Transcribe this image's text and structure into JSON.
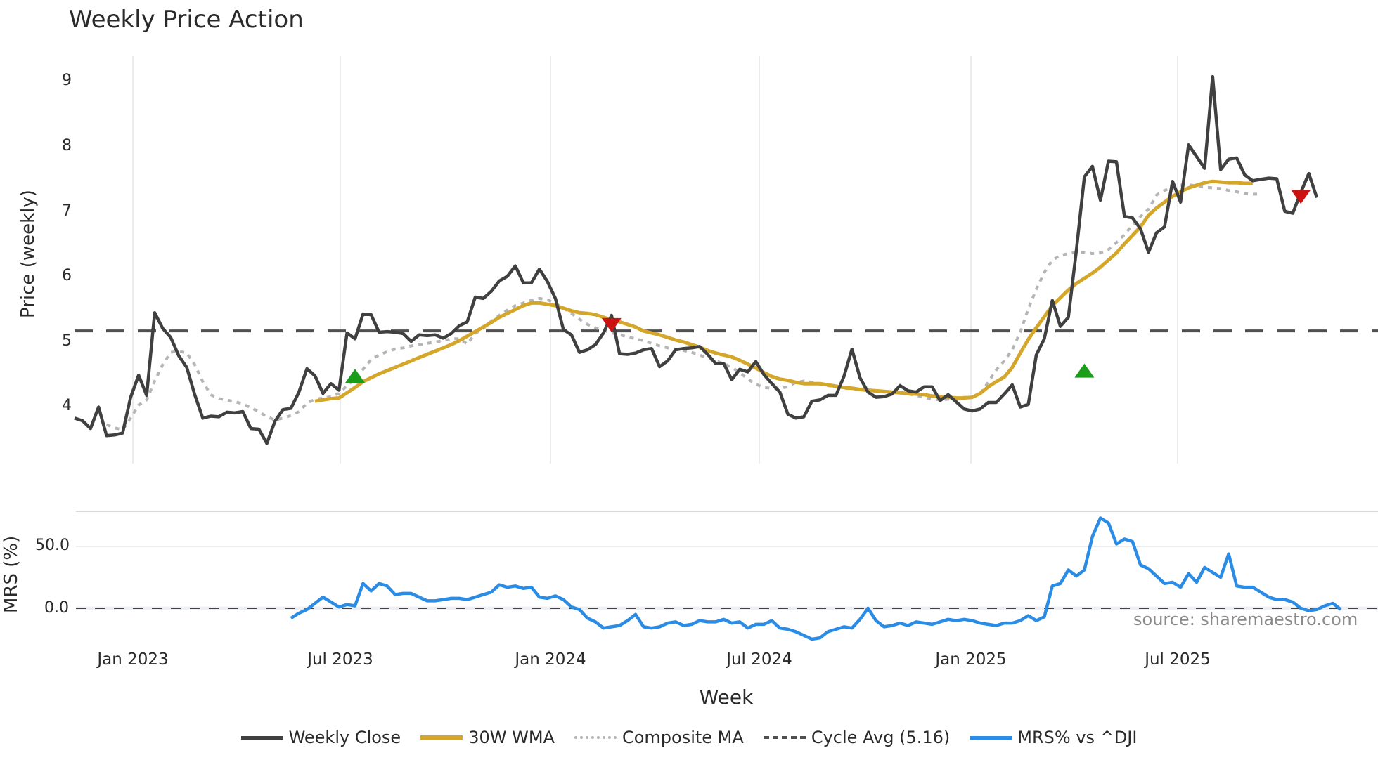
{
  "title": "Weekly Price Action",
  "price_axis": {
    "label": "Price (weekly)",
    "ticks": [
      "9",
      "8",
      "7",
      "6",
      "5",
      "4"
    ]
  },
  "mrs_axis": {
    "label": "MRS (%)",
    "ticks": [
      "50.0",
      "0.0"
    ]
  },
  "x_axis": {
    "label": "Week",
    "ticks": [
      "Jan 2023",
      "Jul 2023",
      "Jan 2024",
      "Jul 2024",
      "Jan 2025",
      "Jul 2025"
    ]
  },
  "source": "source: sharemaestro.com",
  "colors": {
    "close": "#404040",
    "wma": "#d4a62a",
    "composite": "#b5b5b5",
    "cycle": "#505050",
    "mrs": "#2b8ce6",
    "buy": "#1a9e1a",
    "sell": "#cc1111",
    "grid": "#ececf0"
  },
  "legend": [
    {
      "key": "close",
      "label": "Weekly Close"
    },
    {
      "key": "wma",
      "label": "30W WMA"
    },
    {
      "key": "composite",
      "label": "Composite MA"
    },
    {
      "key": "cycle",
      "label": "Cycle Avg (5.16)"
    },
    {
      "key": "mrs",
      "label": "MRS% vs ^DJI"
    }
  ],
  "chart_data": [
    {
      "type": "line",
      "title": "Weekly Price Action",
      "xlabel": "Week",
      "ylabel": "Price (weekly)",
      "ylim": [
        3.2,
        9.4
      ],
      "x_start": "2022-11-14",
      "x_step": "1 week",
      "x_ticks": [
        "Jan 2023",
        "Jul 2023",
        "Jan 2024",
        "Jul 2024",
        "Jan 2025",
        "Jul 2025"
      ],
      "grid": true,
      "legend_position": "bottom",
      "series": [
        {
          "name": "Weekly Close",
          "values": [
            3.82,
            3.78,
            3.66,
            3.99,
            3.55,
            3.56,
            3.59,
            4.14,
            4.48,
            4.17,
            5.44,
            5.2,
            5.06,
            4.78,
            4.6,
            4.18,
            3.82,
            3.85,
            3.84,
            3.91,
            3.9,
            3.92,
            3.66,
            3.65,
            3.43,
            3.77,
            3.95,
            3.97,
            4.22,
            4.58,
            4.47,
            4.2,
            4.35,
            4.25,
            5.13,
            5.04,
            5.42,
            5.41,
            5.14,
            5.15,
            5.14,
            5.12,
            5.0,
            5.1,
            5.09,
            5.1,
            5.05,
            5.12,
            5.24,
            5.3,
            5.68,
            5.66,
            5.77,
            5.93,
            6.0,
            6.16,
            5.9,
            5.9,
            6.11,
            5.92,
            5.66,
            5.18,
            5.1,
            4.83,
            4.87,
            4.95,
            5.13,
            5.4,
            4.81,
            4.8,
            4.82,
            4.87,
            4.89,
            4.61,
            4.7,
            4.87,
            4.89,
            4.9,
            4.92,
            4.8,
            4.66,
            4.66,
            4.41,
            4.57,
            4.53,
            4.69,
            4.49,
            4.35,
            4.22,
            3.88,
            3.82,
            3.84,
            4.08,
            4.1,
            4.17,
            4.17,
            4.46,
            4.88,
            4.44,
            4.22,
            4.14,
            4.15,
            4.19,
            4.32,
            4.24,
            4.22,
            4.3,
            4.3,
            4.09,
            4.18,
            4.07,
            3.96,
            3.93,
            3.96,
            4.06,
            4.06,
            4.19,
            4.33,
            3.99,
            4.03,
            4.79,
            5.04,
            5.63,
            5.23,
            5.37,
            6.4,
            7.53,
            7.69,
            7.17,
            7.77,
            7.76,
            6.92,
            6.9,
            6.73,
            6.37,
            6.67,
            6.76,
            7.46,
            7.14,
            8.02,
            7.84,
            7.66,
            9.07,
            7.64,
            7.8,
            7.82,
            7.56,
            7.47,
            7.49,
            7.51,
            7.5,
            7.0,
            6.97,
            7.29,
            7.58,
            7.21
          ]
        },
        {
          "name": "30W WMA",
          "start_index": 30,
          "values": [
            4.08,
            4.1,
            4.12,
            4.13,
            4.21,
            4.29,
            4.38,
            4.44,
            4.5,
            4.55,
            4.6,
            4.65,
            4.7,
            4.75,
            4.8,
            4.85,
            4.9,
            4.95,
            5.01,
            5.08,
            5.15,
            5.22,
            5.29,
            5.37,
            5.43,
            5.49,
            5.55,
            5.59,
            5.59,
            5.57,
            5.55,
            5.51,
            5.47,
            5.44,
            5.43,
            5.41,
            5.37,
            5.33,
            5.3,
            5.26,
            5.22,
            5.16,
            5.13,
            5.1,
            5.06,
            5.02,
            4.99,
            4.95,
            4.91,
            4.86,
            4.82,
            4.79,
            4.76,
            4.71,
            4.65,
            4.59,
            4.52,
            4.46,
            4.42,
            4.4,
            4.37,
            4.35,
            4.35,
            4.35,
            4.33,
            4.31,
            4.29,
            4.28,
            4.26,
            4.25,
            4.24,
            4.23,
            4.22,
            4.21,
            4.2,
            4.19,
            4.18,
            4.16,
            4.15,
            4.14,
            4.13,
            4.13,
            4.14,
            4.2,
            4.3,
            4.38,
            4.45,
            4.6,
            4.82,
            5.03,
            5.21,
            5.38,
            5.55,
            5.67,
            5.79,
            5.89,
            5.97,
            6.05,
            6.14,
            6.25,
            6.36,
            6.5,
            6.63,
            6.76,
            6.94,
            7.05,
            7.14,
            7.23,
            7.3,
            7.36,
            7.4,
            7.44,
            7.46,
            7.45,
            7.44,
            7.44,
            7.43,
            7.43
          ]
        },
        {
          "name": "Composite MA",
          "start_index": 4,
          "values": [
            3.72,
            3.67,
            3.64,
            3.82,
            4.02,
            4.1,
            4.39,
            4.64,
            4.83,
            4.85,
            4.82,
            4.64,
            4.38,
            4.18,
            4.12,
            4.1,
            4.07,
            4.04,
            3.98,
            3.92,
            3.84,
            3.79,
            3.82,
            3.86,
            3.92,
            4.05,
            4.11,
            4.13,
            4.15,
            4.2,
            4.32,
            4.42,
            4.57,
            4.72,
            4.79,
            4.84,
            4.88,
            4.9,
            4.93,
            4.95,
            4.97,
            4.99,
            5.01,
            5.04,
            5.04,
            4.96,
            5.12,
            5.2,
            5.31,
            5.4,
            5.48,
            5.55,
            5.59,
            5.63,
            5.66,
            5.64,
            5.58,
            5.51,
            5.43,
            5.34,
            5.26,
            5.21,
            5.17,
            5.13,
            5.1,
            5.07,
            5.04,
            5.01,
            4.97,
            4.93,
            4.9,
            4.88,
            4.86,
            4.83,
            4.79,
            4.74,
            4.7,
            4.66,
            4.6,
            4.52,
            4.42,
            4.34,
            4.29,
            4.28,
            4.28,
            4.3,
            4.37,
            4.39,
            4.37,
            4.34,
            4.32,
            4.3,
            4.28,
            4.27,
            4.26,
            4.25,
            4.23,
            4.22,
            4.22,
            4.21,
            4.19,
            4.17,
            4.14,
            4.11,
            4.1,
            4.11,
            4.12,
            4.14,
            4.14,
            4.2,
            4.37,
            4.56,
            4.7,
            4.87,
            5.14,
            5.5,
            5.8,
            6.06,
            6.25,
            6.32,
            6.35,
            6.37,
            6.37,
            6.35,
            6.36,
            6.41,
            6.52,
            6.64,
            6.79,
            6.92,
            7.03,
            7.25,
            7.32,
            7.37,
            7.4,
            7.41,
            7.39,
            7.37,
            7.36,
            7.35,
            7.32,
            7.3,
            7.27,
            7.26,
            7.27
          ]
        },
        {
          "name": "Cycle Avg (5.16)",
          "values": [
            5.16
          ],
          "style": "dashed horizontal"
        }
      ],
      "markers": [
        {
          "type": "buy",
          "shape": "triangle-up",
          "index": 35,
          "value": 4.47
        },
        {
          "type": "sell",
          "shape": "triangle-down",
          "index": 67,
          "value": 5.25
        },
        {
          "type": "buy",
          "shape": "triangle-up",
          "index": 126,
          "value": 4.55
        },
        {
          "type": "sell",
          "shape": "triangle-down",
          "index": 153,
          "value": 7.22
        }
      ]
    },
    {
      "type": "line",
      "title": "",
      "xlabel": "Week",
      "ylabel": "MRS (%)",
      "ylim": [
        -30,
        80
      ],
      "y_ticks": [
        0,
        50
      ],
      "grid": true,
      "series": [
        {
          "name": "MRS% vs ^DJI",
          "start_index": 27,
          "values": [
            -8,
            -4,
            -1,
            4,
            9,
            5,
            1,
            3,
            2,
            20,
            14,
            20,
            18,
            11,
            12,
            12,
            9,
            6,
            6,
            7,
            8,
            8,
            7,
            9,
            11,
            13,
            19,
            17,
            18,
            16,
            17,
            9,
            8,
            10,
            7,
            1,
            -1,
            -8,
            -11,
            -16,
            -15,
            -14,
            -10,
            -5,
            -15,
            -16,
            -15,
            -12,
            -11,
            -14,
            -13,
            -10,
            -11,
            -11,
            -9,
            -12,
            -11,
            -16,
            -13,
            -13,
            -10,
            -16,
            -17,
            -19,
            -22,
            -25,
            -24,
            -19,
            -17,
            -15,
            -16,
            -9,
            0,
            -10,
            -15,
            -14,
            -12,
            -14,
            -11,
            -12,
            -13,
            -11,
            -9,
            -10,
            -9,
            -10,
            -12,
            -13,
            -14,
            -12,
            -12,
            -10,
            -6,
            -10,
            -7,
            18,
            20,
            31,
            26,
            31,
            58,
            73,
            69,
            52,
            56,
            54,
            35,
            32,
            26,
            20,
            21,
            17,
            28,
            21,
            33,
            29,
            25,
            44,
            18,
            17,
            17,
            13,
            9,
            7,
            7,
            5,
            0,
            -2,
            -1,
            2,
            4,
            -1
          ]
        },
        {
          "name": "Zero line",
          "values": [
            0
          ],
          "style": "dashed horizontal"
        }
      ]
    }
  ]
}
